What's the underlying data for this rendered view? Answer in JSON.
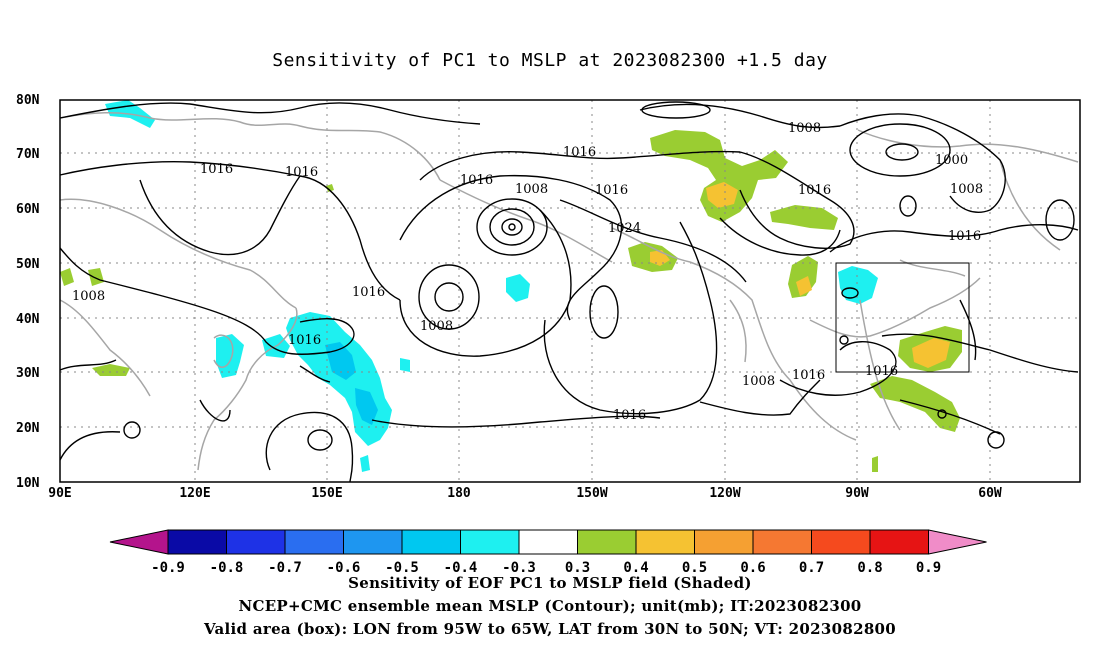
{
  "title": "Sensitivity of PC1 to MSLP at 2023082300 +1.5 day",
  "lat_labels": [
    "80N",
    "70N",
    "60N",
    "50N",
    "40N",
    "30N",
    "20N",
    "10N"
  ],
  "lon_labels": [
    "90E",
    "120E",
    "150E",
    "180",
    "150W",
    "120W",
    "90W",
    "60W"
  ],
  "contour_labels": [
    "1016",
    "1016",
    "1008",
    "1016",
    "1008",
    "1016",
    "1016",
    "1024",
    "1008",
    "1016",
    "1000",
    "1008",
    "1016",
    "1016",
    "1008",
    "1016",
    "1016",
    "1008",
    "1016",
    "1016"
  ],
  "colorbar": {
    "labels": [
      "-0.9",
      "-0.8",
      "-0.7",
      "-0.6",
      "-0.5",
      "-0.4",
      "-0.3",
      "0.3",
      "0.4",
      "0.5",
      "0.6",
      "0.7",
      "0.8",
      "0.9"
    ],
    "colors": [
      "#0a0aa6",
      "#1e32e6",
      "#2a6ef0",
      "#1e96f0",
      "#00c8f0",
      "#1ef0f0",
      "#ffffff",
      "#9acd32",
      "#f5c232",
      "#f5a032",
      "#f57832",
      "#f54a1e",
      "#e61414"
    ],
    "low_end_color": "#b4148c",
    "high_end_color": "#f08cc8"
  },
  "valid_area": {
    "lon": [
      "95W",
      "65W"
    ],
    "lat": [
      "30N",
      "50N"
    ]
  },
  "captions": [
    "Sensitivity of EOF PC1 to MSLP field (Shaded)",
    "NCEP+CMC ensemble mean MSLP (Contour); unit(mb); IT:2023082300",
    "Valid area (box): LON from 95W to 65W, LAT from 30N to 50N; VT: 2023082800"
  ],
  "colors": {
    "coast": "#a6a6a6",
    "contour": "#000000",
    "grid": "#888888",
    "pos1": "#9acd32",
    "pos2": "#f5c232",
    "neg": "#1ef0f0",
    "neg2": "#00c8f0"
  }
}
